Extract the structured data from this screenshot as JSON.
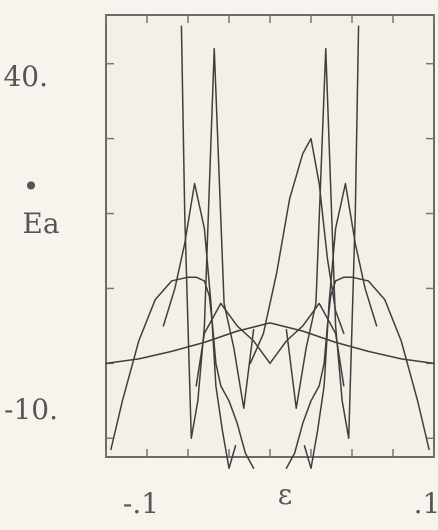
{
  "chart_data": {
    "type": "line",
    "title": "",
    "xlabel": "ε",
    "ylabel": "Ė a",
    "ylabel_main": "Ea",
    "ylabel_accent": "•",
    "xlim": [
      -0.1,
      0.1
    ],
    "ylim": [
      -12.5,
      46.5
    ],
    "grid": false,
    "legend": "none",
    "x_tick_labels": [
      "-.1",
      ".1"
    ],
    "y_tick_labels": [
      "40.",
      "-10."
    ],
    "x_ticks": [
      -0.1,
      -0.075,
      -0.05,
      -0.025,
      0,
      0.025,
      0.05,
      0.075,
      0.1
    ],
    "y_ticks": [
      -10,
      0,
      10,
      20,
      30,
      40
    ],
    "series": [
      {
        "x": [
          -0.1,
          -0.08,
          -0.06,
          -0.04,
          -0.02,
          0,
          0.02,
          0.04,
          0.06,
          0.08,
          0.1
        ],
        "y": [
          0,
          0.6,
          1.6,
          2.8,
          4.3,
          5.4,
          4.3,
          2.8,
          1.6,
          0.6,
          0
        ]
      },
      {
        "x": [
          -0.097,
          -0.09,
          -0.08,
          -0.07,
          -0.06,
          -0.05,
          -0.045,
          -0.04,
          -0.037,
          -0.035,
          -0.033,
          -0.03,
          -0.025,
          -0.02,
          -0.015,
          -0.01
        ],
        "y": [
          -11.5,
          -5,
          3,
          8.5,
          11,
          11.5,
          11.5,
          11,
          9,
          5,
          0,
          -3,
          -5,
          -8,
          -12,
          -14
        ]
      },
      {
        "x": [
          0.097,
          0.09,
          0.08,
          0.07,
          0.06,
          0.05,
          0.045,
          0.04,
          0.037,
          0.035,
          0.033,
          0.03,
          0.025,
          0.02,
          0.015,
          0.01
        ],
        "y": [
          -11.5,
          -5,
          3,
          8.5,
          11,
          11.5,
          11.5,
          11,
          9,
          5,
          0,
          -3,
          -5,
          -8,
          -12,
          -14
        ]
      },
      {
        "x": [
          -0.01,
          -0.016,
          -0.022,
          -0.028,
          -0.034,
          -0.04,
          -0.044,
          -0.048,
          -0.052,
          -0.054
        ],
        "y": [
          4.5,
          -6,
          2,
          8,
          42,
          5,
          -5,
          -10,
          20,
          45
        ]
      },
      {
        "x": [
          0.01,
          0.016,
          0.022,
          0.028,
          0.034,
          0.04,
          0.044,
          0.048,
          0.052,
          0.054
        ],
        "y": [
          4.5,
          -6,
          2,
          8,
          42,
          5,
          -5,
          -10,
          20,
          45
        ]
      },
      {
        "x": [
          -0.065,
          -0.058,
          -0.052,
          -0.046,
          -0.04,
          -0.036,
          -0.033,
          -0.029,
          -0.025,
          -0.021
        ],
        "y": [
          5,
          10,
          16,
          24,
          18,
          8,
          -3,
          -9,
          -14,
          -11
        ]
      },
      {
        "x": [
          0.065,
          0.058,
          0.052,
          0.046,
          0.04,
          0.036,
          0.033,
          0.029,
          0.025,
          0.021
        ],
        "y": [
          5,
          10,
          16,
          24,
          18,
          8,
          -3,
          -9,
          -14,
          -11
        ]
      },
      {
        "x": [
          -0.012,
          -0.004,
          0.004,
          0.012,
          0.02,
          0.025,
          0.03,
          0.035,
          0.04,
          0.045
        ],
        "y": [
          0,
          4,
          12,
          22,
          28,
          30,
          24,
          14,
          7,
          4
        ]
      },
      {
        "x": [
          -0.045,
          -0.04,
          -0.03,
          -0.02,
          -0.01,
          0
        ],
        "y": [
          -3,
          4,
          8,
          5,
          3,
          0
        ]
      },
      {
        "x": [
          0.045,
          0.04,
          0.03,
          0.02,
          0.01,
          0
        ],
        "y": [
          -3,
          4,
          8,
          5,
          3,
          0
        ]
      }
    ]
  }
}
